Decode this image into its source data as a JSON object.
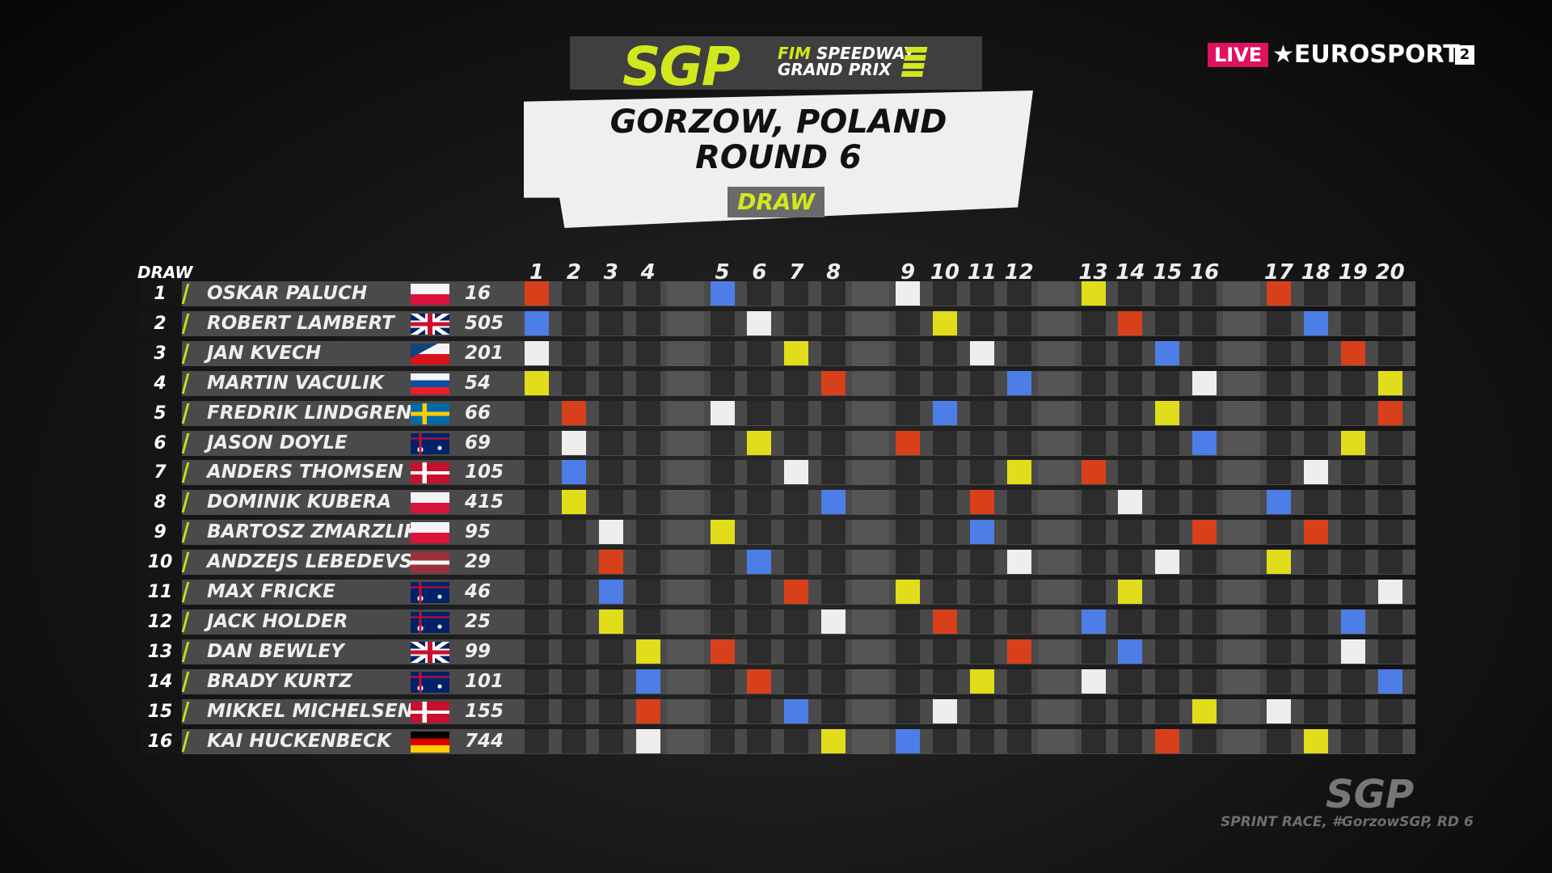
{
  "logo": {
    "brand": "SGP",
    "line1_accent": "FIM",
    "line1": "SPEEDWAY",
    "line2": "GRAND PRIX"
  },
  "header": {
    "title_line1": "GORZOW, POLAND",
    "title_line2": "ROUND 6",
    "tag": "DRAW"
  },
  "broadcaster": {
    "live": "LIVE",
    "channel": "EUROSPORT",
    "channel_number": "2"
  },
  "table": {
    "draw_label": "DRAW",
    "heats": [
      "1",
      "2",
      "3",
      "4",
      "5",
      "6",
      "7",
      "8",
      "9",
      "10",
      "11",
      "12",
      "13",
      "14",
      "15",
      "16",
      "17",
      "18",
      "19",
      "20"
    ]
  },
  "gate_colors": {
    "R": "#d8401c",
    "B": "#4d7ee8",
    "W": "#eeeeee",
    "Y": "#e2dd1a"
  },
  "riders": [
    {
      "draw": "1",
      "name": "OSKAR PALUCH",
      "country": "poland",
      "number": "16",
      "heats": [
        [
          1,
          "R"
        ],
        [
          5,
          "B"
        ],
        [
          9,
          "W"
        ],
        [
          13,
          "Y"
        ],
        [
          17,
          "R"
        ]
      ]
    },
    {
      "draw": "2",
      "name": "ROBERT LAMBERT",
      "country": "great-britain",
      "number": "505",
      "heats": [
        [
          1,
          "B"
        ],
        [
          6,
          "W"
        ],
        [
          10,
          "Y"
        ],
        [
          14,
          "R"
        ],
        [
          18,
          "B"
        ]
      ]
    },
    {
      "draw": "3",
      "name": "JAN KVECH",
      "country": "czech-republic",
      "number": "201",
      "heats": [
        [
          1,
          "W"
        ],
        [
          7,
          "Y"
        ],
        [
          11,
          "W"
        ],
        [
          15,
          "B"
        ],
        [
          19,
          "R"
        ]
      ]
    },
    {
      "draw": "4",
      "name": "MARTIN VACULIK",
      "country": "slovakia",
      "number": "54",
      "heats": [
        [
          1,
          "Y"
        ],
        [
          8,
          "R"
        ],
        [
          12,
          "B"
        ],
        [
          16,
          "W"
        ],
        [
          20,
          "Y"
        ]
      ]
    },
    {
      "draw": "5",
      "name": "FREDRIK LINDGREN",
      "country": "sweden",
      "number": "66",
      "heats": [
        [
          2,
          "R"
        ],
        [
          5,
          "W"
        ],
        [
          10,
          "B"
        ],
        [
          15,
          "Y"
        ],
        [
          20,
          "R"
        ]
      ]
    },
    {
      "draw": "6",
      "name": "JASON DOYLE",
      "country": "australia",
      "number": "69",
      "heats": [
        [
          2,
          "W"
        ],
        [
          6,
          "Y"
        ],
        [
          9,
          "R"
        ],
        [
          16,
          "B"
        ],
        [
          19,
          "Y"
        ]
      ]
    },
    {
      "draw": "7",
      "name": "ANDERS THOMSEN",
      "country": "denmark",
      "number": "105",
      "heats": [
        [
          2,
          "B"
        ],
        [
          7,
          "W"
        ],
        [
          12,
          "Y"
        ],
        [
          13,
          "R"
        ],
        [
          18,
          "W"
        ]
      ]
    },
    {
      "draw": "8",
      "name": "DOMINIK KUBERA",
      "country": "poland",
      "number": "415",
      "heats": [
        [
          2,
          "Y"
        ],
        [
          8,
          "B"
        ],
        [
          11,
          "R"
        ],
        [
          14,
          "W"
        ],
        [
          17,
          "B"
        ]
      ]
    },
    {
      "draw": "9",
      "name": "BARTOSZ ZMARZLIK",
      "country": "poland",
      "number": "95",
      "heats": [
        [
          3,
          "W"
        ],
        [
          5,
          "Y"
        ],
        [
          11,
          "B"
        ],
        [
          16,
          "R"
        ],
        [
          18,
          "R"
        ]
      ]
    },
    {
      "draw": "10",
      "name": "ANDZEJS LEBEDEVS",
      "country": "latvia",
      "number": "29",
      "heats": [
        [
          3,
          "R"
        ],
        [
          6,
          "B"
        ],
        [
          12,
          "W"
        ],
        [
          15,
          "W"
        ],
        [
          17,
          "Y"
        ]
      ]
    },
    {
      "draw": "11",
      "name": "MAX FRICKE",
      "country": "australia",
      "number": "46",
      "heats": [
        [
          3,
          "B"
        ],
        [
          7,
          "R"
        ],
        [
          9,
          "Y"
        ],
        [
          14,
          "Y"
        ],
        [
          20,
          "W"
        ]
      ]
    },
    {
      "draw": "12",
      "name": "JACK HOLDER",
      "country": "australia",
      "number": "25",
      "heats": [
        [
          3,
          "Y"
        ],
        [
          8,
          "W"
        ],
        [
          10,
          "R"
        ],
        [
          13,
          "B"
        ],
        [
          19,
          "B"
        ]
      ]
    },
    {
      "draw": "13",
      "name": "DAN BEWLEY",
      "country": "great-britain",
      "number": "99",
      "heats": [
        [
          4,
          "Y"
        ],
        [
          5,
          "R"
        ],
        [
          12,
          "R"
        ],
        [
          14,
          "B"
        ],
        [
          19,
          "W"
        ]
      ]
    },
    {
      "draw": "14",
      "name": "BRADY KURTZ",
      "country": "australia",
      "number": "101",
      "heats": [
        [
          4,
          "B"
        ],
        [
          6,
          "R"
        ],
        [
          11,
          "Y"
        ],
        [
          13,
          "W"
        ],
        [
          20,
          "B"
        ]
      ]
    },
    {
      "draw": "15",
      "name": "MIKKEL MICHELSEN",
      "country": "denmark",
      "number": "155",
      "heats": [
        [
          4,
          "R"
        ],
        [
          7,
          "B"
        ],
        [
          10,
          "W"
        ],
        [
          16,
          "Y"
        ],
        [
          17,
          "W"
        ]
      ]
    },
    {
      "draw": "16",
      "name": "KAI HUCKENBECK",
      "country": "germany",
      "number": "744",
      "heats": [
        [
          4,
          "W"
        ],
        [
          8,
          "Y"
        ],
        [
          9,
          "B"
        ],
        [
          15,
          "R"
        ],
        [
          18,
          "Y"
        ]
      ]
    }
  ],
  "footer": {
    "logo": "SGP",
    "caption": "SPRINT RACE, #GorzowSGP, RD 6"
  }
}
